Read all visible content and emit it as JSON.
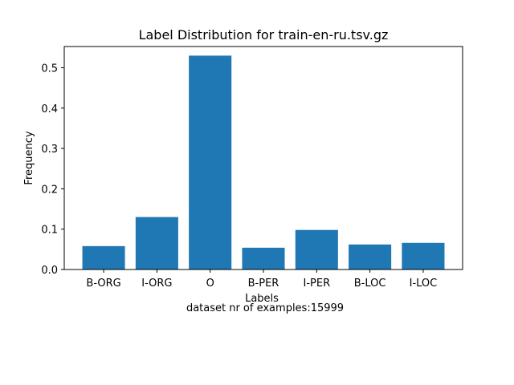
{
  "chart_data": {
    "type": "bar",
    "title": "Label Distribution for train-en-ru.tsv.gz",
    "xlabel": "Labels",
    "ylabel": "Frequency",
    "caption": "dataset nr of examples:15999",
    "categories": [
      "B-ORG",
      "I-ORG",
      "O",
      "B-PER",
      "I-PER",
      "B-LOC",
      "I-LOC"
    ],
    "values": [
      0.058,
      0.13,
      0.53,
      0.054,
      0.098,
      0.062,
      0.066
    ],
    "ylim": [
      0,
      0.5526
    ],
    "yticks": [
      0.0,
      0.1,
      0.2,
      0.3,
      0.4,
      0.5
    ],
    "ytick_labels": [
      "0.0",
      "0.1",
      "0.2",
      "0.3",
      "0.4",
      "0.5"
    ],
    "bar_color": "#1f77b4",
    "grid": false,
    "legend": false
  }
}
